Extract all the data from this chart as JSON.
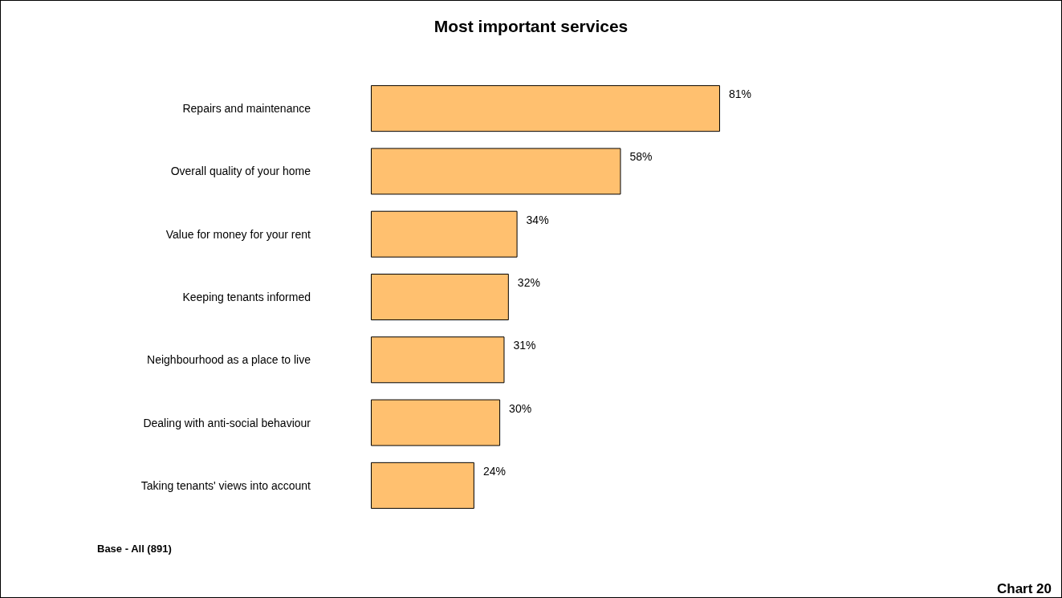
{
  "chart_data": {
    "type": "bar",
    "orientation": "horizontal",
    "title": "Most important services",
    "categories": [
      "Repairs and maintenance",
      "Overall quality of your home",
      "Value for money for your rent",
      "Keeping tenants informed",
      "Neighbourhood as a place to live",
      "Dealing with anti-social behaviour",
      "Taking tenants' views into account"
    ],
    "values": [
      81,
      58,
      34,
      32,
      31,
      30,
      24
    ],
    "value_labels": [
      "81%",
      "58%",
      "34%",
      "32%",
      "31%",
      "30%",
      "24%"
    ],
    "color": "#ffc06f",
    "annotations": [
      "Base - All (891)",
      "Chart 20"
    ]
  }
}
